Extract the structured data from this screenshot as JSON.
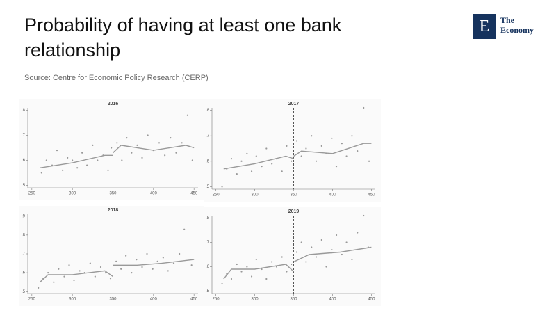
{
  "title": "Probability of having at least one bank relationship",
  "source": "Source: Centre for Economic Policy Research (CERP)",
  "logo": {
    "mark": "E",
    "text": "The Economy"
  },
  "chart_data": [
    {
      "type": "scatter",
      "title": "2016",
      "xlim": [
        245,
        455
      ],
      "ylim": [
        0.49,
        0.81
      ],
      "xticks": [
        250,
        300,
        350,
        400,
        450
      ],
      "yticks": [
        {
          "value": 0.5,
          "label": ".5"
        },
        {
          "value": 0.6,
          "label": ".6"
        },
        {
          "value": 0.7,
          "label": ".7"
        },
        {
          "value": 0.8,
          "label": ".8"
        }
      ],
      "vline": 350,
      "color": "#999999",
      "points": {
        "x": [
          262,
          268,
          275,
          281,
          288,
          294,
          300,
          306,
          312,
          318,
          325,
          331,
          338,
          344,
          348,
          355,
          361,
          367,
          373,
          380,
          386,
          393,
          400,
          407,
          414,
          421,
          428,
          435,
          442,
          448
        ],
        "y": [
          0.55,
          0.6,
          0.58,
          0.64,
          0.56,
          0.61,
          0.6,
          0.57,
          0.63,
          0.58,
          0.66,
          0.6,
          0.62,
          0.56,
          0.65,
          0.67,
          0.6,
          0.69,
          0.63,
          0.66,
          0.61,
          0.7,
          0.64,
          0.67,
          0.62,
          0.69,
          0.63,
          0.67,
          0.78,
          0.6
        ]
      },
      "fit": {
        "x": [
          260,
          300,
          340,
          350,
          null,
          350,
          360,
          400,
          440,
          450
        ],
        "y": [
          0.57,
          0.59,
          0.62,
          0.62,
          null,
          0.63,
          0.66,
          0.64,
          0.66,
          0.65
        ]
      }
    },
    {
      "type": "scatter",
      "title": "2017",
      "xlim": [
        245,
        455
      ],
      "ylim": [
        0.49,
        0.81
      ],
      "xticks": [
        250,
        300,
        350,
        400,
        450
      ],
      "yticks": [
        {
          "value": 0.5,
          "label": ".5"
        },
        {
          "value": 0.6,
          "label": ".6"
        },
        {
          "value": 0.7,
          "label": ".7"
        },
        {
          "value": 0.8,
          "label": ".8"
        }
      ],
      "vline": 350,
      "color": "#999999",
      "points": {
        "x": [
          258,
          264,
          270,
          277,
          283,
          290,
          296,
          302,
          309,
          315,
          322,
          328,
          335,
          341,
          347,
          354,
          360,
          366,
          373,
          379,
          386,
          392,
          399,
          405,
          412,
          418,
          425,
          432,
          440,
          447
        ],
        "y": [
          0.5,
          0.57,
          0.61,
          0.55,
          0.6,
          0.63,
          0.56,
          0.62,
          0.58,
          0.65,
          0.59,
          0.61,
          0.56,
          0.66,
          0.6,
          0.68,
          0.62,
          0.65,
          0.7,
          0.6,
          0.66,
          0.63,
          0.69,
          0.58,
          0.67,
          0.62,
          0.7,
          0.64,
          0.81,
          0.6
        ]
      },
      "fit": {
        "x": [
          260,
          300,
          340,
          350,
          null,
          350,
          360,
          400,
          440,
          450
        ],
        "y": [
          0.57,
          0.59,
          0.62,
          0.61,
          null,
          0.62,
          0.64,
          0.63,
          0.67,
          0.67
        ]
      }
    },
    {
      "type": "scatter",
      "title": "2018",
      "xlim": [
        245,
        455
      ],
      "ylim": [
        0.49,
        0.91
      ],
      "xticks": [
        250,
        300,
        350,
        400,
        450
      ],
      "yticks": [
        {
          "value": 0.5,
          "label": ".5"
        },
        {
          "value": 0.6,
          "label": ".6"
        },
        {
          "value": 0.7,
          "label": ".7"
        },
        {
          "value": 0.8,
          "label": ".8"
        },
        {
          "value": 0.9,
          "label": ".9"
        }
      ],
      "vline": 350,
      "color": "#999999",
      "points": {
        "x": [
          258,
          264,
          270,
          277,
          283,
          290,
          296,
          302,
          309,
          315,
          322,
          328,
          335,
          341,
          347,
          354,
          360,
          366,
          373,
          379,
          386,
          392,
          399,
          405,
          412,
          418,
          425,
          432,
          438,
          447
        ],
        "y": [
          0.52,
          0.57,
          0.6,
          0.55,
          0.62,
          0.58,
          0.64,
          0.56,
          0.61,
          0.6,
          0.65,
          0.58,
          0.63,
          0.6,
          0.57,
          0.66,
          0.62,
          0.69,
          0.6,
          0.67,
          0.63,
          0.7,
          0.62,
          0.66,
          0.68,
          0.61,
          0.65,
          0.7,
          0.83,
          0.64
        ]
      },
      "fit": {
        "x": [
          260,
          270,
          300,
          340,
          350,
          null,
          350,
          380,
          410,
          450
        ],
        "y": [
          0.55,
          0.59,
          0.59,
          0.61,
          0.58,
          null,
          0.64,
          0.64,
          0.65,
          0.67
        ]
      }
    },
    {
      "type": "scatter",
      "title": "2019",
      "xlim": [
        245,
        455
      ],
      "ylim": [
        0.49,
        0.81
      ],
      "xticks": [
        250,
        300,
        350,
        400,
        450
      ],
      "yticks": [
        {
          "value": 0.5,
          "label": ".5"
        },
        {
          "value": 0.6,
          "label": ".6"
        },
        {
          "value": 0.7,
          "label": ".7"
        },
        {
          "value": 0.8,
          "label": ".8"
        }
      ],
      "vline": 350,
      "color": "#999999",
      "points": {
        "x": [
          258,
          264,
          270,
          277,
          283,
          290,
          296,
          302,
          309,
          315,
          322,
          328,
          335,
          341,
          347,
          354,
          360,
          366,
          373,
          379,
          386,
          392,
          399,
          405,
          412,
          418,
          425,
          432,
          440,
          446
        ],
        "y": [
          0.53,
          0.57,
          0.55,
          0.61,
          0.58,
          0.6,
          0.56,
          0.63,
          0.59,
          0.55,
          0.62,
          0.6,
          0.64,
          0.58,
          0.61,
          0.66,
          0.7,
          0.62,
          0.68,
          0.64,
          0.71,
          0.6,
          0.67,
          0.73,
          0.65,
          0.7,
          0.63,
          0.74,
          0.81,
          0.68
        ]
      },
      "fit": {
        "x": [
          260,
          270,
          300,
          340,
          350,
          null,
          350,
          370,
          410,
          450
        ],
        "y": [
          0.55,
          0.59,
          0.59,
          0.61,
          0.58,
          null,
          0.62,
          0.65,
          0.66,
          0.68
        ]
      }
    }
  ]
}
